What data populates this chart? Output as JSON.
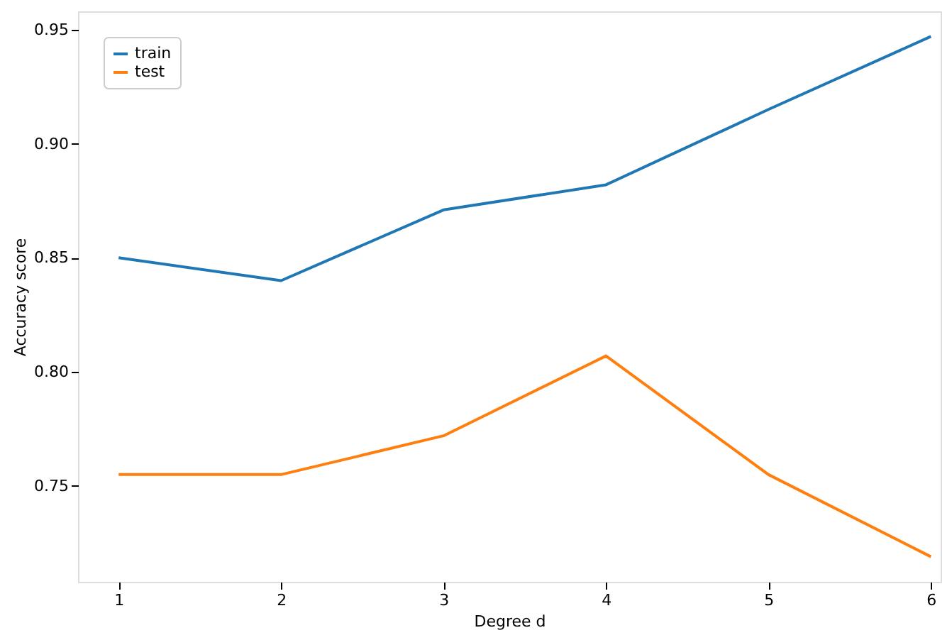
{
  "chart_data": {
    "type": "line",
    "xlabel": "Degree d",
    "ylabel": "Accuracy score",
    "x": [
      1,
      2,
      3,
      4,
      5,
      6
    ],
    "series": [
      {
        "name": "train",
        "color": "#1f77b4",
        "values": [
          0.85,
          0.84,
          0.871,
          0.882,
          0.915,
          0.947
        ]
      },
      {
        "name": "test",
        "color": "#ff7f0e",
        "values": [
          0.755,
          0.755,
          0.772,
          0.807,
          0.755,
          0.719
        ]
      }
    ],
    "xlim": [
      0.75,
      6.06
    ],
    "xticks": [
      1,
      2,
      3,
      4,
      5,
      6
    ],
    "ylim": [
      0.708,
      0.958
    ],
    "yticks": [
      0.75,
      {
        "value": 0.8,
        "label": "0.80"
      },
      0.85,
      {
        "value": 0.9,
        "label": "0.90"
      },
      0.95
    ],
    "grid": false,
    "legend": "top left",
    "marker": "none",
    "line_style": "solid"
  }
}
